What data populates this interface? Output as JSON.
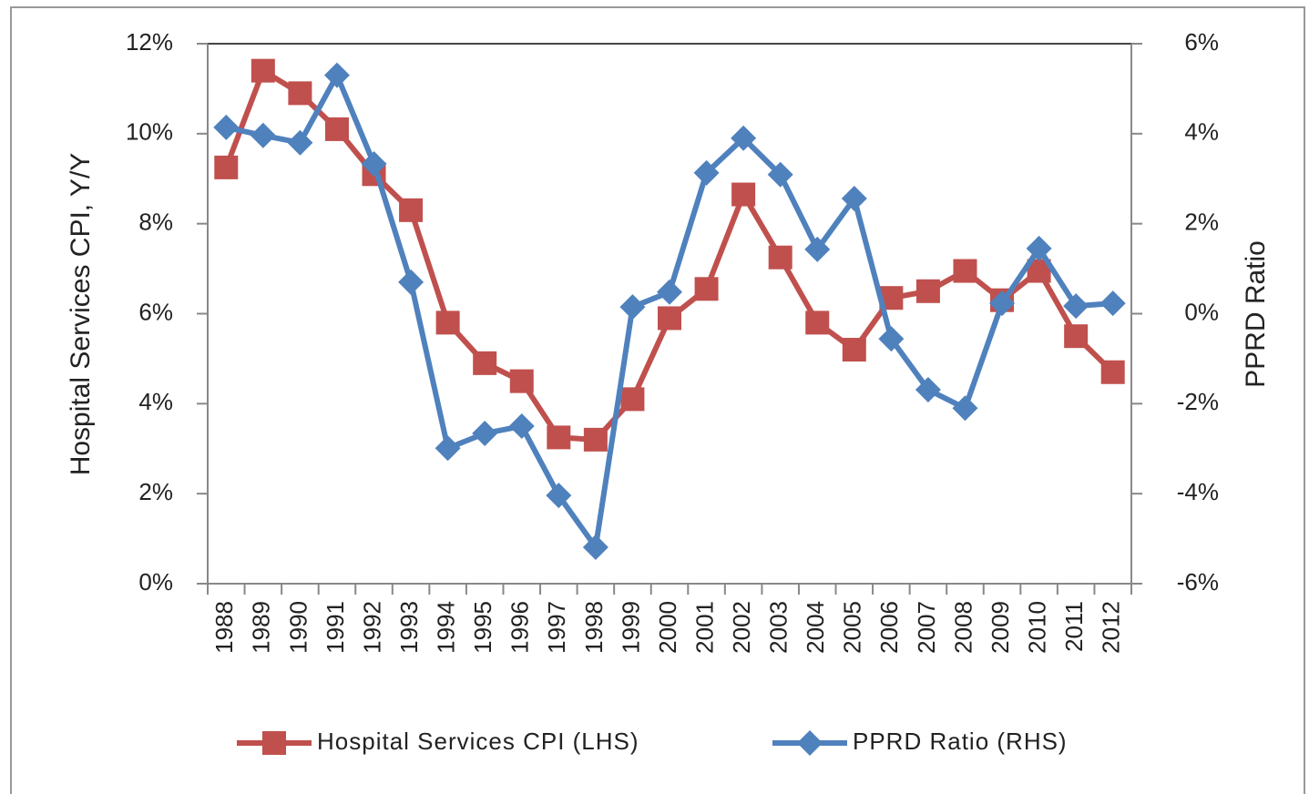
{
  "chart_data": {
    "type": "line",
    "y_label": "Hospital Services CPI, Y/Y",
    "y2_label": "PPRD Ratio",
    "categories": [
      "1988",
      "1989",
      "1990",
      "1991",
      "1992",
      "1993",
      "1994",
      "1995",
      "1996",
      "1997",
      "1998",
      "1999",
      "2000",
      "2001",
      "2002",
      "2003",
      "2004",
      "2005",
      "2006",
      "2007",
      "2008",
      "2009",
      "2010",
      "2011",
      "2012"
    ],
    "series": [
      {
        "name": "Hospital Services CPI (LHS)",
        "color": "#c0504d",
        "marker": "square",
        "axis": "y",
        "values": [
          9.25,
          11.4,
          10.9,
          10.1,
          9.1,
          8.3,
          5.8,
          4.9,
          4.5,
          3.25,
          3.2,
          4.1,
          5.9,
          6.55,
          8.65,
          7.25,
          5.8,
          5.2,
          6.35,
          6.5,
          6.95,
          6.3,
          6.95,
          5.5,
          4.7
        ]
      },
      {
        "name": "PPRD Ratio (RHS)",
        "color": "#4f81bd",
        "marker": "diamond",
        "axis": "y2",
        "values": [
          4.14,
          3.96,
          3.8,
          5.3,
          3.33,
          0.7,
          -2.99,
          -2.66,
          -2.5,
          -4.04,
          -5.19,
          0.15,
          0.48,
          3.13,
          3.9,
          3.09,
          1.43,
          2.56,
          -0.56,
          -1.69,
          -2.1,
          0.23,
          1.45,
          0.17,
          0.23
        ]
      }
    ],
    "ylim": [
      0,
      12
    ],
    "yticks": [
      {
        "value": 0,
        "label": "0%"
      },
      {
        "value": 2,
        "label": "2%"
      },
      {
        "value": 4,
        "label": "4%"
      },
      {
        "value": 6,
        "label": "6%"
      },
      {
        "value": 8,
        "label": "8%"
      },
      {
        "value": 10,
        "label": "10%"
      },
      {
        "value": 12,
        "label": "12%"
      }
    ],
    "y2lim": [
      -6,
      6
    ],
    "y2ticks": [
      {
        "value": -6,
        "label": "-6%"
      },
      {
        "value": -4,
        "label": "-4%"
      },
      {
        "value": -2,
        "label": "-2%"
      },
      {
        "value": 0,
        "label": "0%"
      },
      {
        "value": 2,
        "label": "2%"
      },
      {
        "value": 4,
        "label": "4%"
      },
      {
        "value": 6,
        "label": "6%"
      }
    ],
    "legend": "bottom"
  }
}
